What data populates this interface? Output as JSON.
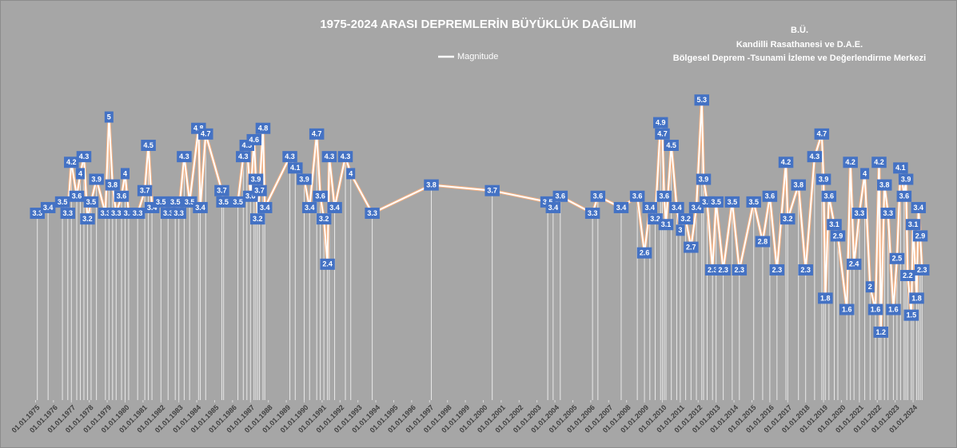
{
  "chart_data": {
    "type": "line",
    "title": "1975-2024 ARASI DEPREMLERİN BÜYÜKLÜK DAĞILIMI",
    "annotations": [
      "B.Ü.",
      "Kandilli Rasathanesi ve D.A.E.",
      "Bölgesel Deprem -Tsunami İzleme ve Değerlendirme Merkezi"
    ],
    "xlim": [
      1974.8,
      2024.8
    ],
    "ylim": [
      0,
      5.6
    ],
    "xticks": [
      {
        "value": 1975,
        "label": "01.01.1975"
      },
      {
        "value": 1976,
        "label": "01.01.1976"
      },
      {
        "value": 1977,
        "label": "01.01.1977"
      },
      {
        "value": 1978,
        "label": "01.01.1978"
      },
      {
        "value": 1979,
        "label": "01.01.1979"
      },
      {
        "value": 1980,
        "label": "01.01.1980"
      },
      {
        "value": 1981,
        "label": "01.01.1981"
      },
      {
        "value": 1982,
        "label": "01.01.1982"
      },
      {
        "value": 1983,
        "label": "01.01.1983"
      },
      {
        "value": 1984,
        "label": "01.01.1984"
      },
      {
        "value": 1985,
        "label": "01.01.1985"
      },
      {
        "value": 1986,
        "label": "01.01.1986"
      },
      {
        "value": 1987,
        "label": "01.01.1987"
      },
      {
        "value": 1988,
        "label": "01.01.1988"
      },
      {
        "value": 1989,
        "label": "01.01.1989"
      },
      {
        "value": 1990,
        "label": "01.01.1990"
      },
      {
        "value": 1991,
        "label": "01.01.1991"
      },
      {
        "value": 1992,
        "label": "01.01.1992"
      },
      {
        "value": 1993,
        "label": "01.01.1993"
      },
      {
        "value": 1994,
        "label": "01.01.1994"
      },
      {
        "value": 1995,
        "label": "01.01.1995"
      },
      {
        "value": 1996,
        "label": "01.01.1996"
      },
      {
        "value": 1997,
        "label": "01.01.1997"
      },
      {
        "value": 1998,
        "label": "01.01.1998"
      },
      {
        "value": 1999,
        "label": "01.01.1999"
      },
      {
        "value": 2000,
        "label": "01.01.2000"
      },
      {
        "value": 2001,
        "label": "01.01.2001"
      },
      {
        "value": 2002,
        "label": "01.01.2002"
      },
      {
        "value": 2003,
        "label": "01.01.2003"
      },
      {
        "value": 2004,
        "label": "01.01.2004"
      },
      {
        "value": 2005,
        "label": "01.01.2005"
      },
      {
        "value": 2006,
        "label": "01.01.2006"
      },
      {
        "value": 2007,
        "label": "01.01.2007"
      },
      {
        "value": 2008,
        "label": "01.01.2008"
      },
      {
        "value": 2009,
        "label": "01.01.2009"
      },
      {
        "value": 2010,
        "label": "01.01.2010"
      },
      {
        "value": 2011,
        "label": "01.01.2011"
      },
      {
        "value": 2012,
        "label": "01.01.2012"
      },
      {
        "value": 2013,
        "label": "01.01.2013"
      },
      {
        "value": 2014,
        "label": "01.01.2014"
      },
      {
        "value": 2015,
        "label": "01.01.2015"
      },
      {
        "value": 2016,
        "label": "01.01.2016"
      },
      {
        "value": 2017,
        "label": "01.01.2017"
      },
      {
        "value": 2018,
        "label": "01.01.2018"
      },
      {
        "value": 2019,
        "label": "01.01.2019"
      },
      {
        "value": 2020,
        "label": "01.01.2020"
      },
      {
        "value": 2021,
        "label": "01.01.2021"
      },
      {
        "value": 2022,
        "label": "01.01.2022"
      },
      {
        "value": 2023,
        "label": "01.01.2023"
      },
      {
        "value": 2024,
        "label": "01.01.2024"
      }
    ],
    "series": [
      {
        "name": "Magnitude",
        "color": "#ffffff",
        "label_color": "#4472c4",
        "x": [
          1975.1,
          1975.7,
          1976.5,
          1976.8,
          1977.0,
          1977.3,
          1977.5,
          1977.7,
          1977.9,
          1978.1,
          1978.4,
          1978.9,
          1979.1,
          1979.3,
          1979.5,
          1979.8,
          1980.0,
          1980.2,
          1980.7,
          1981.1,
          1981.3,
          1981.5,
          1982.0,
          1982.4,
          1982.8,
          1983.0,
          1983.3,
          1983.6,
          1984.1,
          1984.2,
          1984.5,
          1985.4,
          1985.5,
          1986.3,
          1986.6,
          1986.8,
          1987.0,
          1987.2,
          1987.3,
          1987.4,
          1987.5,
          1987.7,
          1987.8,
          1989.2,
          1989.5,
          1990.0,
          1990.3,
          1990.7,
          1990.9,
          1991.1,
          1991.3,
          1991.4,
          1991.7,
          1992.3,
          1992.6,
          1993.8,
          1997.1,
          2000.5,
          2003.6,
          2003.9,
          2004.3,
          2006.1,
          2006.4,
          2007.7,
          2008.6,
          2009.0,
          2009.3,
          2009.6,
          2009.9,
          2010.0,
          2010.1,
          2010.2,
          2010.5,
          2010.8,
          2011.0,
          2011.3,
          2011.6,
          2011.9,
          2012.2,
          2012.3,
          2012.5,
          2012.8,
          2013.0,
          2013.4,
          2013.9,
          2014.3,
          2015.1,
          2015.6,
          2016.0,
          2016.4,
          2016.9,
          2017.0,
          2017.6,
          2018.0,
          2018.5,
          2018.9,
          2019.0,
          2019.1,
          2019.3,
          2019.6,
          2019.8,
          2020.3,
          2020.5,
          2020.7,
          2021.0,
          2021.3,
          2021.6,
          2021.9,
          2022.1,
          2022.2,
          2022.4,
          2022.6,
          2022.9,
          2023.1,
          2023.3,
          2023.5,
          2023.6,
          2023.7,
          2023.9,
          2024.0,
          2024.2,
          2024.3,
          2024.4,
          2024.5
        ],
        "values": [
          3.3,
          3.4,
          3.5,
          3.3,
          4.2,
          3.6,
          4,
          4.3,
          3.2,
          3.5,
          3.9,
          3.3,
          5,
          3.8,
          3.3,
          3.6,
          4,
          3.3,
          3.3,
          3.7,
          4.5,
          3.4,
          3.5,
          3.3,
          3.5,
          3.3,
          4.3,
          3.5,
          4.8,
          3.4,
          4.7,
          3.7,
          3.5,
          3.5,
          4.3,
          4.5,
          3.6,
          4.6,
          3.9,
          3.2,
          3.7,
          4.8,
          3.4,
          4.3,
          4.1,
          3.9,
          3.4,
          4.7,
          3.6,
          3.2,
          2.4,
          4.3,
          3.4,
          4.3,
          4,
          3.3,
          3.8,
          3.7,
          3.5,
          3.4,
          3.6,
          3.3,
          3.6,
          3.4,
          3.6,
          2.6,
          3.4,
          3.2,
          4.9,
          4.7,
          3.6,
          3.1,
          4.5,
          3.4,
          3,
          3.2,
          2.7,
          3.4,
          5.3,
          3.9,
          3.5,
          2.3,
          3.5,
          2.3,
          3.5,
          2.3,
          3.5,
          2.8,
          3.6,
          2.3,
          4.2,
          3.2,
          3.8,
          2.3,
          4.3,
          4.7,
          3.9,
          1.8,
          3.6,
          3.1,
          2.9,
          1.6,
          4.2,
          2.4,
          3.3,
          4,
          2,
          1.6,
          4.2,
          1.2,
          3.8,
          3.3,
          1.6,
          2.5,
          4.1,
          3.6,
          3.9,
          2.2,
          1.5,
          3.1,
          1.8,
          3.4,
          2.9,
          2.3
        ]
      }
    ]
  }
}
